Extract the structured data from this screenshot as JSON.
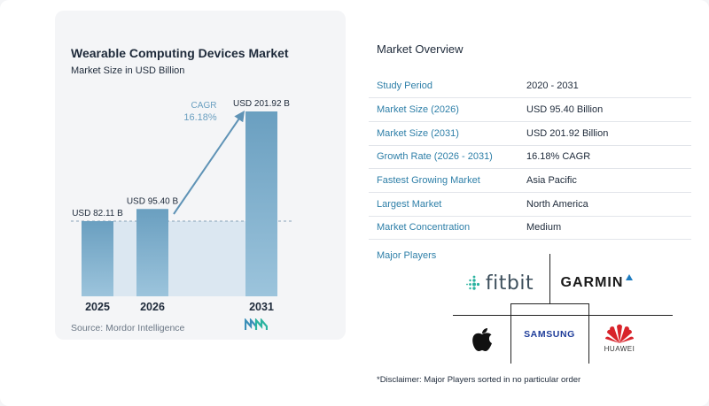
{
  "chart": {
    "title": "Wearable Computing Devices Market",
    "subtitle": "Market Size in USD Billion",
    "source": "Source:  Mordor Intelligence",
    "cagr_label": "CAGR",
    "cagr_value": "16.18%"
  },
  "chart_data": {
    "type": "bar",
    "categories": [
      "2025",
      "2026",
      "2031"
    ],
    "values": [
      82.11,
      95.4,
      201.92
    ],
    "value_labels": [
      "USD 82.11 B",
      "USD 95.40 B",
      "USD 201.92 B"
    ],
    "ylim": [
      0,
      201.92
    ],
    "colors": {
      "bar_top": "#6a9fc0",
      "bar_bottom": "#9cc4dc",
      "arrow": "#5f93b6",
      "baseline_fill": "#dbe7f1"
    }
  },
  "overview": {
    "title": "Market Overview",
    "rows": [
      {
        "key": "Study Period",
        "value": "2020 - 2031"
      },
      {
        "key": "Market Size (2026)",
        "value": "USD 95.40 Billion"
      },
      {
        "key": "Market Size (2031)",
        "value": "USD 201.92 Billion"
      },
      {
        "key": "Growth Rate (2026 - 2031)",
        "value": "16.18% CAGR"
      },
      {
        "key": "Fastest Growing Market",
        "value": "Asia Pacific"
      },
      {
        "key": "Largest Market",
        "value": "North America"
      },
      {
        "key": "Market Concentration",
        "value": "Medium"
      }
    ],
    "players_title": "Major Players",
    "players": {
      "fitbit": "fitbit",
      "garmin": "GARMIN",
      "samsung": "SAMSUNG",
      "huawei": "HUAWEI"
    },
    "disclaimer": "*Disclaimer: Major Players sorted in no particular order"
  }
}
